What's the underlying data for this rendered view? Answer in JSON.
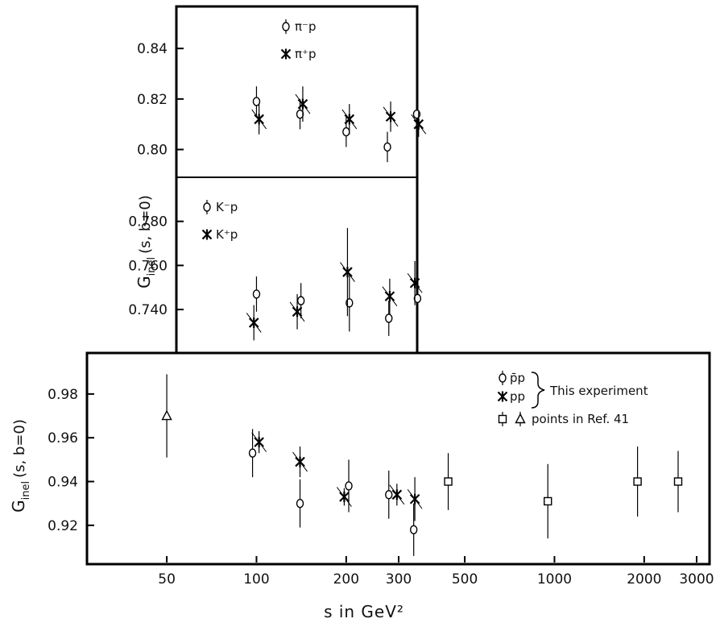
{
  "chart_data": [
    {
      "panel": "pion",
      "type": "scatter",
      "ylabel": "G",
      "ylabel_sub": "inel",
      "ylabel_tail": "(s, b=0)",
      "yticks": [
        "0.80",
        "0.82",
        "0.84"
      ],
      "ylim": [
        0.789,
        0.856
      ],
      "xscale": "log",
      "series": [
        {
          "name": "π⁻p",
          "marker": "circle",
          "points": [
            {
              "x": 100,
              "y": 0.819,
              "err": 0.006
            },
            {
              "x": 140,
              "y": 0.814,
              "err": 0.006
            },
            {
              "x": 200,
              "y": 0.807,
              "err": 0.006
            },
            {
              "x": 275,
              "y": 0.801,
              "err": 0.006
            },
            {
              "x": 345,
              "y": 0.814,
              "err": 0.006
            }
          ]
        },
        {
          "name": "π⁺p",
          "marker": "star",
          "points": [
            {
              "x": 102,
              "y": 0.812,
              "err": 0.006
            },
            {
              "x": 143,
              "y": 0.818,
              "err": 0.007
            },
            {
              "x": 205,
              "y": 0.812,
              "err": 0.006
            },
            {
              "x": 282,
              "y": 0.813,
              "err": 0.006
            },
            {
              "x": 350,
              "y": 0.81,
              "err": 0.005
            }
          ]
        }
      ]
    },
    {
      "panel": "kaon",
      "type": "scatter",
      "yticks": [
        "0.740",
        "0.760",
        "0.780"
      ],
      "ylim": [
        0.721,
        0.8
      ],
      "xscale": "log",
      "series": [
        {
          "name": "K⁻p",
          "marker": "circle",
          "points": [
            {
              "x": 100,
              "y": 0.747,
              "err": 0.008
            },
            {
              "x": 141,
              "y": 0.744,
              "err": 0.008
            },
            {
              "x": 205,
              "y": 0.743,
              "err": 0.013
            },
            {
              "x": 278,
              "y": 0.736,
              "err": 0.008
            },
            {
              "x": 347,
              "y": 0.745,
              "err": 0.008
            }
          ]
        },
        {
          "name": "K⁺p",
          "marker": "star",
          "points": [
            {
              "x": 98,
              "y": 0.734,
              "err": 0.008
            },
            {
              "x": 137,
              "y": 0.739,
              "err": 0.008
            },
            {
              "x": 202,
              "y": 0.757,
              "err": 0.02
            },
            {
              "x": 280,
              "y": 0.746,
              "err": 0.008
            },
            {
              "x": 340,
              "y": 0.752,
              "err": 0.01
            }
          ]
        }
      ]
    },
    {
      "panel": "proton",
      "type": "scatter",
      "xlabel": "s in GeV²",
      "xticks": [
        "50",
        "100",
        "200",
        "300",
        "500",
        "1000",
        "2000",
        "3000"
      ],
      "xlim": [
        30,
        3000
      ],
      "xscale": "log",
      "ylabel": "G",
      "ylabel_sub": "inel",
      "ylabel_tail": "(s, b=0)",
      "yticks": [
        "0.92",
        "0.94",
        "0.96",
        "0.98"
      ],
      "ylim": [
        0.903,
        0.998
      ],
      "legend_bracket_text": "This experiment",
      "legend_ref_text": "points in Ref. 41",
      "series": [
        {
          "name": "p̄p",
          "marker": "circle",
          "points": [
            {
              "x": 97,
              "y": 0.953,
              "err": 0.011
            },
            {
              "x": 140,
              "y": 0.93,
              "err": 0.011
            },
            {
              "x": 204,
              "y": 0.938,
              "err": 0.012
            },
            {
              "x": 278,
              "y": 0.934,
              "err": 0.011
            },
            {
              "x": 337,
              "y": 0.918,
              "err": 0.012
            }
          ]
        },
        {
          "name": "pp",
          "marker": "star",
          "points": [
            {
              "x": 102,
              "y": 0.958,
              "err": 0.005
            },
            {
              "x": 140,
              "y": 0.949,
              "err": 0.007
            },
            {
              "x": 197,
              "y": 0.933,
              "err": 0.004
            },
            {
              "x": 296,
              "y": 0.934,
              "err": 0.005
            },
            {
              "x": 340,
              "y": 0.932,
              "err": 0.01
            }
          ]
        },
        {
          "name": "Ref. 41",
          "marker": "square",
          "points": [
            {
              "x": 440,
              "y": 0.94,
              "err": 0.013
            },
            {
              "x": 950,
              "y": 0.931,
              "err": 0.017
            },
            {
              "x": 1900,
              "y": 0.94,
              "err": 0.016
            },
            {
              "x": 2600,
              "y": 0.94,
              "err": 0.014
            }
          ]
        },
        {
          "name": "Ref. 41",
          "marker": "triangle",
          "points": [
            {
              "x": 50,
              "y": 0.97,
              "err": 0.019
            }
          ]
        }
      ]
    }
  ]
}
